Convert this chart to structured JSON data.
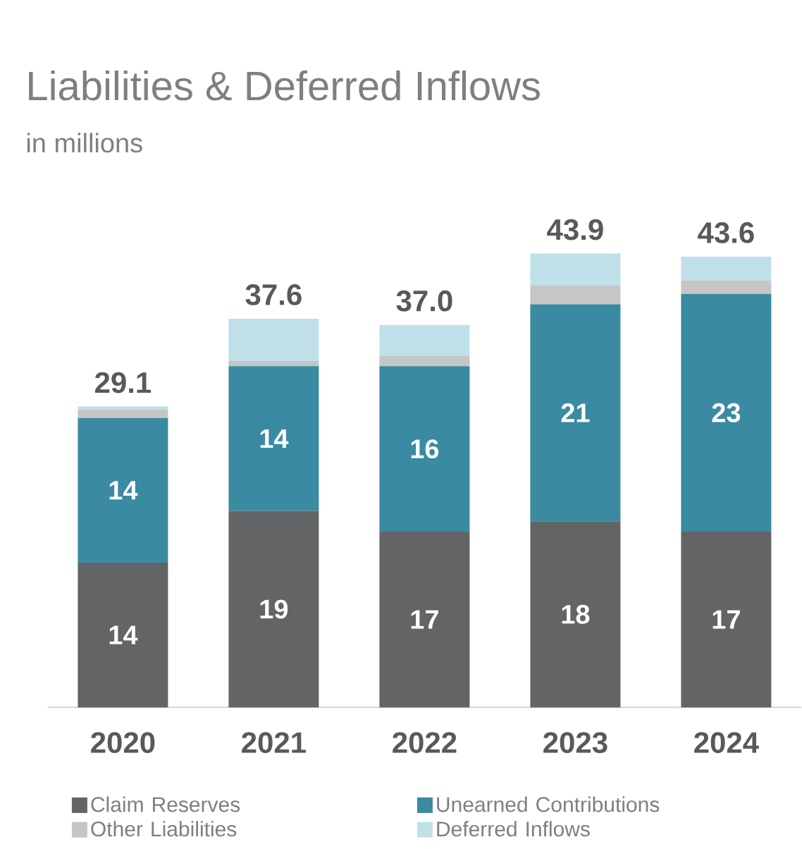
{
  "chart_data": {
    "type": "bar",
    "stacked": true,
    "title": "Liabilities & Deferred Inflows",
    "subtitle": "in millions",
    "categories": [
      "2020",
      "2021",
      "2022",
      "2023",
      "2024"
    ],
    "series": [
      {
        "name": "Claim Reserves",
        "color": "#636466",
        "values": [
          14,
          19,
          17,
          18,
          17
        ],
        "value_labels": [
          "14",
          "19",
          "17",
          "18",
          "17"
        ]
      },
      {
        "name": "Unearned Contributions",
        "color": "#3a8aa1",
        "values": [
          14,
          14,
          16,
          21,
          23
        ],
        "value_labels": [
          "14",
          "14",
          "16",
          "21",
          "23"
        ]
      },
      {
        "name": "Other Liabilities",
        "color": "#c6c6c6",
        "values": [
          0.8,
          0.5,
          1.0,
          1.8,
          1.3
        ]
      },
      {
        "name": "Deferred Inflows",
        "color": "#c0e0e9",
        "values": [
          0.3,
          4.1,
          3.0,
          3.1,
          2.3
        ]
      }
    ],
    "totals": [
      "29.1",
      "37.6",
      "37.0",
      "43.9",
      "43.6"
    ],
    "legend": "bottom"
  }
}
